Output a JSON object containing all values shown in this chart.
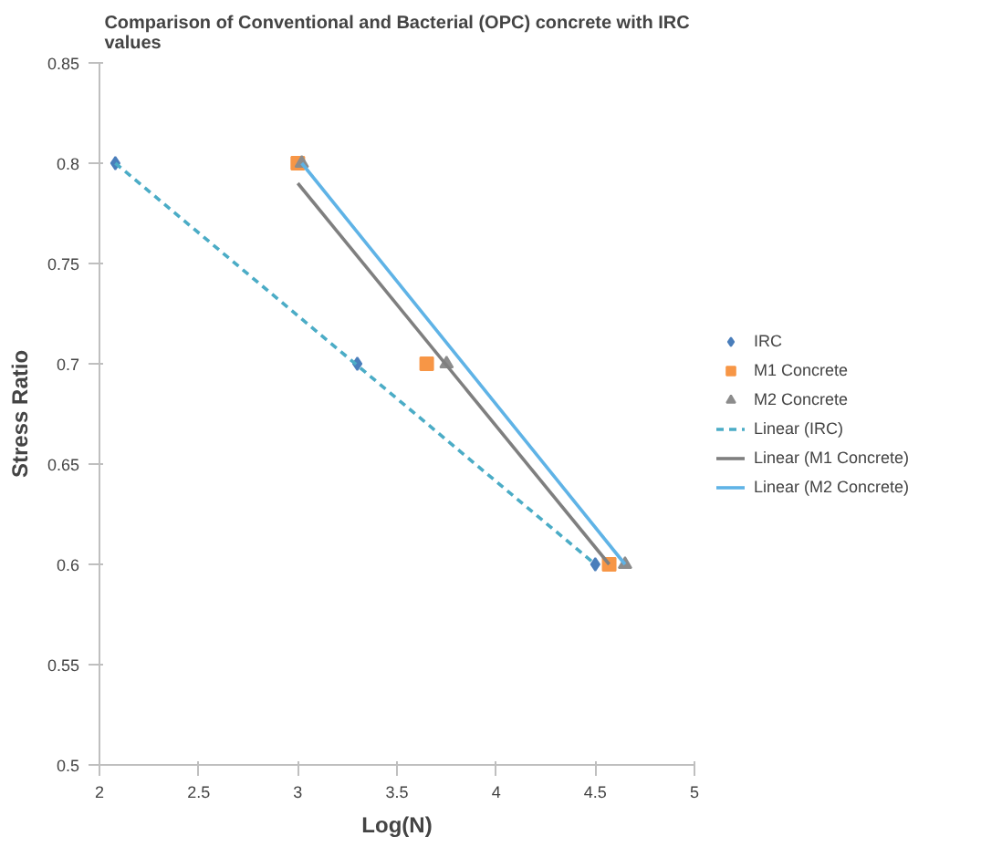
{
  "chart_data": {
    "type": "scatter",
    "title": "Comparison of Conventional and Bacterial (OPC) concrete with IRC\nvalues",
    "xlabel": "Log(N)",
    "ylabel": "Stress Ratio",
    "xlim": [
      2,
      5
    ],
    "xticks": [
      2,
      2.5,
      3,
      3.5,
      4,
      4.5,
      5
    ],
    "ylim": [
      0.5,
      0.85
    ],
    "yticks": [
      0.5,
      0.55,
      0.6,
      0.65,
      0.7,
      0.75,
      0.8,
      0.85
    ],
    "grid": false,
    "legend": "right",
    "series": [
      {
        "name": "IRC",
        "marker": "diamond",
        "color": "#4a7ebb",
        "x": [
          2.08,
          3.3,
          4.5
        ],
        "values": [
          0.8,
          0.7,
          0.6
        ]
      },
      {
        "name": "M1 Concrete",
        "marker": "square",
        "color": "#f79646",
        "x": [
          3.0,
          3.65,
          4.57
        ],
        "values": [
          0.8,
          0.7,
          0.6
        ]
      },
      {
        "name": "M2 Concrete",
        "marker": "triangle",
        "color": "#8c8c8c",
        "x": [
          3.02,
          3.75,
          4.65
        ],
        "values": [
          0.8,
          0.7,
          0.6
        ]
      },
      {
        "name": "Linear (IRC)",
        "type": "line",
        "line_style": "dashed",
        "color": "#4bacc6",
        "x": [
          2.08,
          4.5
        ],
        "values": [
          0.8,
          0.6
        ]
      },
      {
        "name": "Linear (M1 Concrete)",
        "type": "line",
        "line_style": "solid",
        "color": "#7f7f7f",
        "x": [
          3.0,
          4.57
        ],
        "values": [
          0.79,
          0.6
        ]
      },
      {
        "name": "Linear (M2 Concrete)",
        "type": "line",
        "line_style": "solid",
        "color": "#5fb3e6",
        "x": [
          3.02,
          4.65
        ],
        "values": [
          0.8,
          0.6
        ]
      }
    ]
  }
}
